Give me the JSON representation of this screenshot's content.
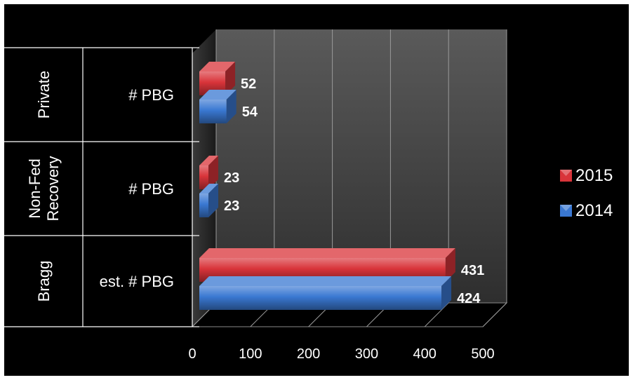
{
  "chart_data": {
    "type": "bar",
    "orientation": "horizontal",
    "style": "3d-clustered",
    "groups": [
      {
        "name": "Bragg",
        "categories": [
          "est. # PBG"
        ]
      },
      {
        "name": "Non-Fed Recovery",
        "lines": [
          "Non-Fed",
          "Recovery"
        ],
        "categories": [
          "# PBG"
        ]
      },
      {
        "name": "Private",
        "categories": [
          "# PBG"
        ]
      }
    ],
    "series": [
      {
        "name": "2015",
        "color": "#d9343a",
        "values": [
          431,
          23,
          52
        ]
      },
      {
        "name": "2014",
        "color": "#3a78d2",
        "values": [
          424,
          23,
          54
        ]
      }
    ],
    "x_ticks": [
      "0",
      "100",
      "200",
      "300",
      "400",
      "500"
    ],
    "xlim": [
      0,
      500
    ],
    "grid": true,
    "legend": {
      "position": "right",
      "entries": [
        "2015",
        "2014"
      ]
    }
  }
}
